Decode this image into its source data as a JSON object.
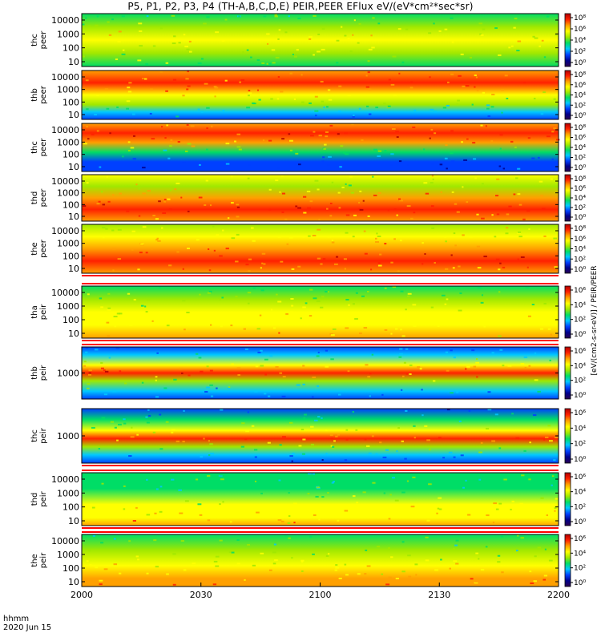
{
  "title": "P5, P1, P2, P3, P4 (TH-A,B,C,D,E) PEIR,PEER EFlux eV/(eV*cm²*sec*sr)",
  "stamp": {
    "label": "hhmm",
    "date": "2020 Jun 15"
  },
  "colorbar_label": "[eV/(cm2-s-sr-eV)] / PEIR/PEER",
  "colormap": [
    "#ffffff",
    "#2a0050",
    "#00008c",
    "#0040ff",
    "#00c8ff",
    "#00dd66",
    "#a0e800",
    "#ffff00",
    "#ffa000",
    "#ff2000",
    "#b00000"
  ],
  "chart_data": {
    "type": "heatmap",
    "x_range": [
      "2000",
      "2200"
    ],
    "x_ticks": [
      "2000",
      "2030",
      "2100",
      "2130",
      "2200"
    ],
    "x_unit": "hhmm",
    "panels": [
      {
        "label": [
          "thc",
          "peer"
        ],
        "yticks": [
          "10000",
          "1000",
          "100",
          "10"
        ],
        "cbticks": [
          "10⁸",
          "10⁶",
          "10⁴",
          "10²",
          "10⁰"
        ],
        "profile": [
          [
            0.0,
            5.2
          ],
          [
            0.25,
            6.2
          ],
          [
            0.5,
            7.2
          ],
          [
            0.75,
            6.4
          ],
          [
            1.0,
            5.4
          ]
        ]
      },
      {
        "label": [
          "thb",
          "peer"
        ],
        "yticks": [
          "10000",
          "1000",
          "100",
          "10"
        ],
        "cbticks": [
          "10⁸",
          "10⁶",
          "10⁴",
          "10²",
          "10⁰"
        ],
        "profile": [
          [
            0.0,
            8.0
          ],
          [
            0.25,
            8.6
          ],
          [
            0.5,
            7.4
          ],
          [
            0.7,
            5.6
          ],
          [
            0.85,
            4.0
          ],
          [
            1.0,
            3.4
          ]
        ]
      },
      {
        "label": [
          "thc",
          "peer"
        ],
        "yticks": [
          "10000",
          "1000",
          "100",
          "10"
        ],
        "cbticks": [
          "10⁸",
          "10⁶",
          "10⁴",
          "10²",
          "10⁰"
        ],
        "profile": [
          [
            0.0,
            7.6
          ],
          [
            0.2,
            9.4
          ],
          [
            0.4,
            7.8
          ],
          [
            0.6,
            5.0
          ],
          [
            0.8,
            3.2
          ],
          [
            1.0,
            2.6
          ]
        ]
      },
      {
        "label": [
          "thd",
          "peer"
        ],
        "yticks": [
          "10000",
          "1000",
          "100",
          "10"
        ],
        "cbticks": [
          "10⁸",
          "10⁶",
          "10⁴",
          "10²",
          "10⁰"
        ],
        "profile": [
          [
            0.0,
            6.6
          ],
          [
            0.25,
            6.4
          ],
          [
            0.5,
            8.4
          ],
          [
            0.75,
            8.8
          ],
          [
            1.0,
            7.8
          ]
        ]
      },
      {
        "label": [
          "the",
          "peer"
        ],
        "yticks": [
          "10000",
          "1000",
          "100",
          "10"
        ],
        "cbticks": [
          "10⁸",
          "10⁶",
          "10⁴",
          "10²",
          "10⁰"
        ],
        "profile": [
          [
            0.0,
            6.4
          ],
          [
            0.25,
            7.0
          ],
          [
            0.5,
            8.4
          ],
          [
            0.75,
            8.8
          ],
          [
            1.0,
            7.6
          ]
        ]
      },
      {
        "label": [
          "tha",
          "peir"
        ],
        "yticks": [
          "10000",
          "1000",
          "100",
          "10"
        ],
        "cbticks": [
          "10⁶",
          "10⁴",
          "10²",
          "10⁰"
        ],
        "profile": [
          [
            0.0,
            5.4
          ],
          [
            0.25,
            5.8
          ],
          [
            0.5,
            6.6
          ],
          [
            0.75,
            7.3
          ],
          [
            1.0,
            7.6
          ]
        ]
      },
      {
        "label": [
          "thb",
          "peir"
        ],
        "yticks": [
          "1000"
        ],
        "cbticks": [
          "10⁶",
          "10⁴",
          "10²",
          "10⁰"
        ],
        "profile": [
          [
            0.0,
            3.2
          ],
          [
            0.15,
            4.0
          ],
          [
            0.35,
            6.8
          ],
          [
            0.5,
            9.0
          ],
          [
            0.65,
            6.4
          ],
          [
            0.85,
            4.0
          ],
          [
            1.0,
            2.8
          ]
        ]
      },
      {
        "label": [
          "thc",
          "peir"
        ],
        "yticks": [
          "1000"
        ],
        "cbticks": [
          "10⁶",
          "10⁴",
          "10²",
          "10⁰"
        ],
        "profile": [
          [
            0.0,
            3.2
          ],
          [
            0.2,
            4.6
          ],
          [
            0.4,
            6.6
          ],
          [
            0.55,
            8.8
          ],
          [
            0.7,
            6.0
          ],
          [
            0.85,
            4.2
          ],
          [
            1.0,
            3.0
          ]
        ]
      },
      {
        "label": [
          "thd",
          "peir"
        ],
        "yticks": [
          "10000",
          "1000",
          "100",
          "10"
        ],
        "cbticks": [
          "10⁶",
          "10⁴",
          "10²",
          "10⁰"
        ],
        "profile": [
          [
            0.0,
            4.8
          ],
          [
            0.3,
            5.2
          ],
          [
            0.6,
            6.6
          ],
          [
            0.85,
            7.4
          ],
          [
            1.0,
            7.6
          ]
        ]
      },
      {
        "label": [
          "the",
          "peir"
        ],
        "yticks": [
          "10000",
          "1000",
          "100",
          "10"
        ],
        "cbticks": [
          "10⁶",
          "10⁴",
          "10²",
          "10⁰"
        ],
        "profile": [
          [
            0.0,
            5.0
          ],
          [
            0.3,
            5.6
          ],
          [
            0.6,
            6.8
          ],
          [
            0.85,
            7.6
          ],
          [
            1.0,
            7.8
          ]
        ]
      }
    ]
  }
}
